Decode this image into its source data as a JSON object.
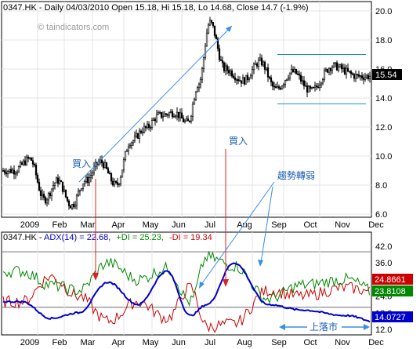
{
  "chart_data": [
    {
      "type": "candlestick",
      "header": {
        "symbol": "0347.HK",
        "text": "0347.HK - Daily 04/03/2010 Open 15.18, Hi 15.18, Lo 14.68, Close 14.7 (-1.9%)",
        "watermark": "© taindicators.com"
      },
      "ylim": [
        6.0,
        20.0
      ],
      "yticks": [
        "20.0",
        "18.0",
        "16.0",
        "14.0",
        "12.0",
        "10.0",
        "8.0",
        "6.0"
      ],
      "last_value_label": "15.54",
      "channel": {
        "upper": 17.0,
        "lower": 13.6,
        "from_month": "Aug",
        "to_month": "Nov"
      },
      "annotations": {
        "buy1": "買入",
        "buy2": "買入",
        "trend_weakening": "趨勢轉弱",
        "topping": "上落市"
      },
      "anchors": [
        {
          "m": "Jan",
          "v": 9.0
        },
        {
          "m": "Jan",
          "v": 9.8
        },
        {
          "m": "Feb",
          "v": 7.0
        },
        {
          "m": "Feb",
          "v": 8.3
        },
        {
          "m": "Mar",
          "v": 6.6
        },
        {
          "m": "Mar",
          "v": 8.3
        },
        {
          "m": "Apr",
          "v": 9.6
        },
        {
          "m": "Apr",
          "v": 8.0
        },
        {
          "m": "May",
          "v": 11.0
        },
        {
          "m": "May",
          "v": 11.9
        },
        {
          "m": "Jun",
          "v": 12.8
        },
        {
          "m": "Jun",
          "v": 13.0
        },
        {
          "m": "Jul",
          "v": 12.3
        },
        {
          "m": "Jul",
          "v": 15.0
        },
        {
          "m": "Jul",
          "v": 19.2
        },
        {
          "m": "Aug",
          "v": 16.0
        },
        {
          "m": "Aug",
          "v": 15.2
        },
        {
          "m": "Sep",
          "v": 16.5
        },
        {
          "m": "Sep",
          "v": 14.6
        },
        {
          "m": "Oct",
          "v": 15.8
        },
        {
          "m": "Oct",
          "v": 14.5
        },
        {
          "m": "Nov",
          "v": 16.2
        },
        {
          "m": "Nov",
          "v": 15.5
        }
      ]
    },
    {
      "type": "line",
      "header": {
        "prefix": "0347.HK - ",
        "adx_label": "ADX(14) = 22.68,",
        "pdi_label": "+DI = 25.23,",
        "mdi_label": "-DI = 19.34"
      },
      "ylim": [
        10.0,
        45.0
      ],
      "yticks": [
        "42.0",
        "36.0",
        "30.0",
        "24.0",
        "18.0",
        "12.0"
      ],
      "reference_lines": [
        20.0,
        40.0
      ],
      "series": [
        {
          "label": "ADX(14)",
          "color": "#0000cc",
          "last_value_label": "14.0727",
          "anchors": [
            {
              "m": "Jan",
              "v": 22
            },
            {
              "m": "Feb",
              "v": 16
            },
            {
              "m": "Mar",
              "v": 18
            },
            {
              "m": "Apr",
              "v": 29
            },
            {
              "m": "May",
              "v": 21
            },
            {
              "m": "Jun",
              "v": 33
            },
            {
              "m": "Jul",
              "v": 17
            },
            {
              "m": "Jul",
              "v": 21
            },
            {
              "m": "Aug",
              "v": 36
            },
            {
              "m": "Sep",
              "v": 21
            },
            {
              "m": "Oct",
              "v": 19
            },
            {
              "m": "Nov",
              "v": 17
            },
            {
              "m": "Dec",
              "v": 14
            }
          ]
        },
        {
          "label": "+DI",
          "color": "#008800",
          "last_value_label": "23.8108",
          "anchors": [
            {
              "m": "Jan",
              "v": 33
            },
            {
              "m": "Feb",
              "v": 28
            },
            {
              "m": "Mar",
              "v": 26
            },
            {
              "m": "Apr",
              "v": 36
            },
            {
              "m": "May",
              "v": 30
            },
            {
              "m": "Jun",
              "v": 34
            },
            {
              "m": "Jul",
              "v": 22
            },
            {
              "m": "Jul",
              "v": 38
            },
            {
              "m": "Aug",
              "v": 35
            },
            {
              "m": "Sep",
              "v": 23
            },
            {
              "m": "Oct",
              "v": 28
            },
            {
              "m": "Nov",
              "v": 30
            },
            {
              "m": "Dec",
              "v": 24
            }
          ]
        },
        {
          "label": "-DI",
          "color": "#cc0000",
          "last_value_label": "24.8661",
          "anchors": [
            {
              "m": "Jan",
              "v": 22
            },
            {
              "m": "Feb",
              "v": 31
            },
            {
              "m": "Mar",
              "v": 24
            },
            {
              "m": "Apr",
              "v": 15
            },
            {
              "m": "May",
              "v": 22
            },
            {
              "m": "Jun",
              "v": 16
            },
            {
              "m": "Jul",
              "v": 27
            },
            {
              "m": "Jul",
              "v": 13
            },
            {
              "m": "Aug",
              "v": 14
            },
            {
              "m": "Sep",
              "v": 26
            },
            {
              "m": "Oct",
              "v": 24
            },
            {
              "m": "Nov",
              "v": 27
            },
            {
              "m": "Dec",
              "v": 25
            }
          ]
        }
      ]
    }
  ],
  "x_axis": {
    "labels": [
      "2009",
      "Feb",
      "Mar",
      "Apr",
      "May",
      "Jun",
      "Jul",
      "Aug",
      "Sep",
      "Oct",
      "Nov",
      "Dec"
    ]
  }
}
